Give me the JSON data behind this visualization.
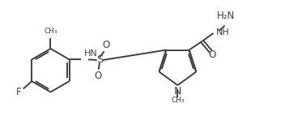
{
  "bg_color": "#ffffff",
  "line_color": "#404040",
  "line_width": 1.4,
  "fig_width": 3.52,
  "fig_height": 1.7,
  "dpi": 100,
  "xlim": [
    0,
    10.5
  ],
  "ylim": [
    0,
    5.0
  ]
}
